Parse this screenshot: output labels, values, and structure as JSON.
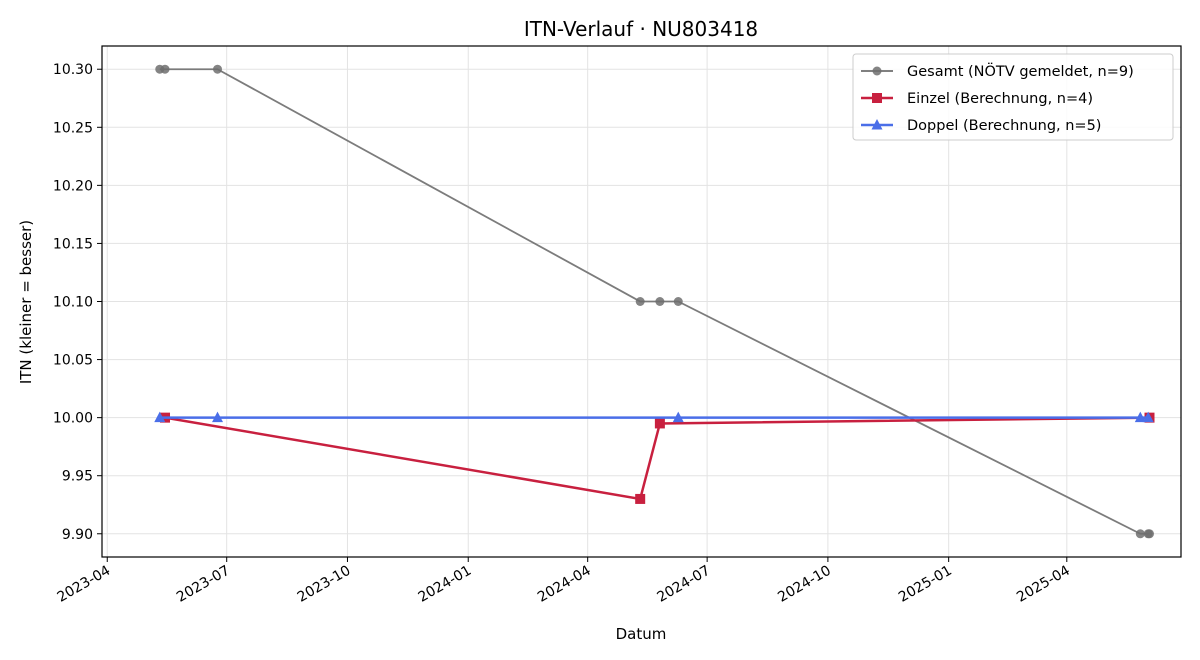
{
  "chart_data": {
    "type": "line",
    "title": "ITN-Verlauf · NU803418",
    "xlabel": "Datum",
    "ylabel": "ITN  (kleiner = besser)",
    "xlim": [
      "2023-03-28",
      "2025-06-27"
    ],
    "ylim": [
      9.88,
      10.32
    ],
    "x_ticks": [
      "2023-04",
      "2023-07",
      "2023-10",
      "2024-01",
      "2024-04",
      "2024-07",
      "2024-10",
      "2025-01",
      "2025-04"
    ],
    "y_ticks": [
      9.9,
      9.95,
      10.0,
      10.05,
      10.1,
      10.15,
      10.2,
      10.25,
      10.3
    ],
    "grid": true,
    "legend_position": "top-right",
    "series": [
      {
        "name": "Gesamt (NÖTV gemeldet, n=9)",
        "color": "#6e6e6e",
        "marker": "circle",
        "points": [
          {
            "x": "2023-05-11",
            "y": 10.3
          },
          {
            "x": "2023-05-15",
            "y": 10.3
          },
          {
            "x": "2023-06-24",
            "y": 10.3
          },
          {
            "x": "2024-05-11",
            "y": 10.1
          },
          {
            "x": "2024-05-26",
            "y": 10.1
          },
          {
            "x": "2024-06-09",
            "y": 10.1
          },
          {
            "x": "2025-05-27",
            "y": 9.9
          },
          {
            "x": "2025-06-02",
            "y": 9.9
          },
          {
            "x": "2025-06-03",
            "y": 9.9
          }
        ]
      },
      {
        "name": "Einzel (Berechnung, n=4)",
        "color": "#c8203f",
        "marker": "square",
        "points": [
          {
            "x": "2023-05-15",
            "y": 10.0
          },
          {
            "x": "2024-05-11",
            "y": 9.93
          },
          {
            "x": "2024-05-26",
            "y": 9.995
          },
          {
            "x": "2025-06-03",
            "y": 10.0
          }
        ]
      },
      {
        "name": "Doppel (Berechnung, n=5)",
        "color": "#4a6ee8",
        "marker": "triangle",
        "points": [
          {
            "x": "2023-05-11",
            "y": 10.0
          },
          {
            "x": "2023-06-24",
            "y": 10.0
          },
          {
            "x": "2024-06-09",
            "y": 10.0
          },
          {
            "x": "2025-05-27",
            "y": 10.0
          },
          {
            "x": "2025-06-02",
            "y": 10.0
          }
        ]
      }
    ]
  }
}
